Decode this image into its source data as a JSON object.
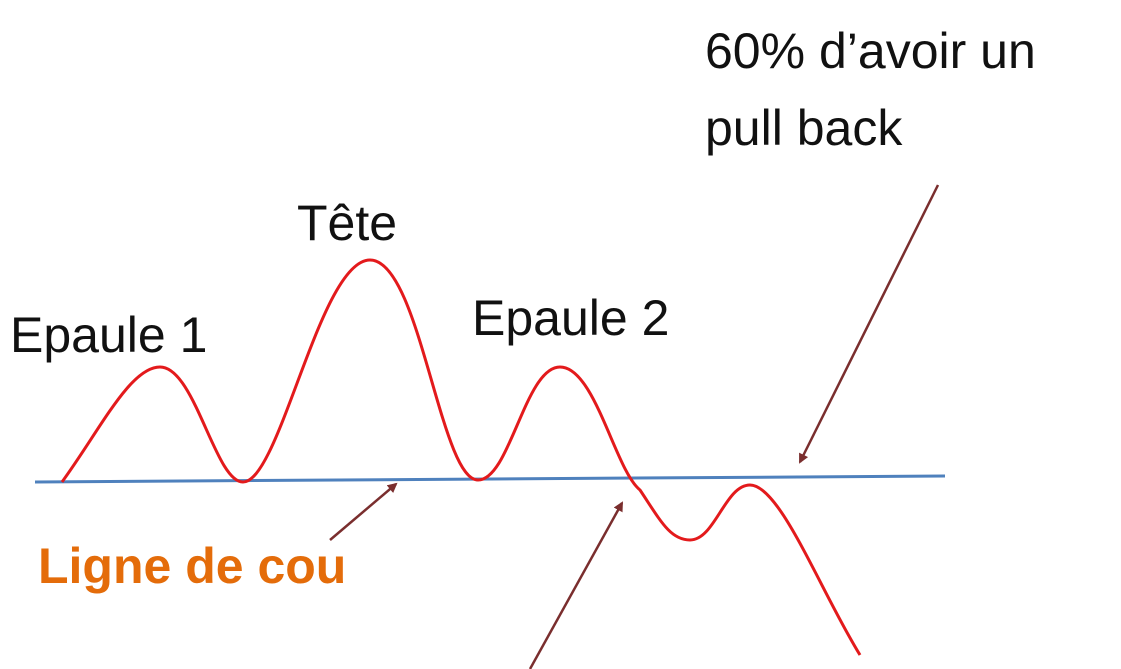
{
  "annotation": {
    "lines": [
      "60% d’avoir un",
      "pull back"
    ]
  },
  "labels": {
    "head": "Tête",
    "shoulder1": "Epaule 1",
    "shoulder2": "Epaule 2",
    "neckline": "Ligne de cou"
  }
}
